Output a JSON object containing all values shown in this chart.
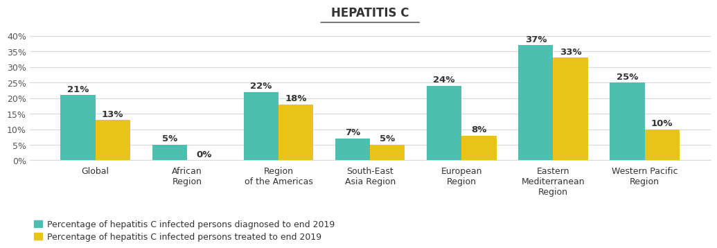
{
  "title": "HEPATITIS C",
  "categories": [
    "Global",
    "African\nRegion",
    "Region\nof the Americas",
    "South-East\nAsia Region",
    "European\nRegion",
    "Eastern\nMediterranean\nRegion",
    "Western Pacific\nRegion"
  ],
  "diagnosed": [
    21,
    5,
    22,
    7,
    24,
    37,
    25
  ],
  "treated": [
    13,
    0,
    18,
    5,
    8,
    33,
    10
  ],
  "color_diagnosed": "#4DBFB0",
  "color_treated": "#E8C319",
  "ylim": [
    0,
    42
  ],
  "yticks": [
    0,
    5,
    10,
    15,
    20,
    25,
    30,
    35,
    40
  ],
  "ytick_labels": [
    "0%",
    "5%",
    "10%",
    "15%",
    "20%",
    "25%",
    "30%",
    "35%",
    "40%"
  ],
  "legend_diagnosed": "Percentage of hepatitis C infected persons diagnosed to end 2019",
  "legend_treated": "Percentage of hepatitis C infected persons treated to end 2019",
  "bg_color": "#ffffff",
  "bar_width": 0.38,
  "title_fontsize": 12,
  "label_fontsize": 9,
  "tick_fontsize": 9,
  "legend_fontsize": 9,
  "annotation_fontsize": 9.5
}
